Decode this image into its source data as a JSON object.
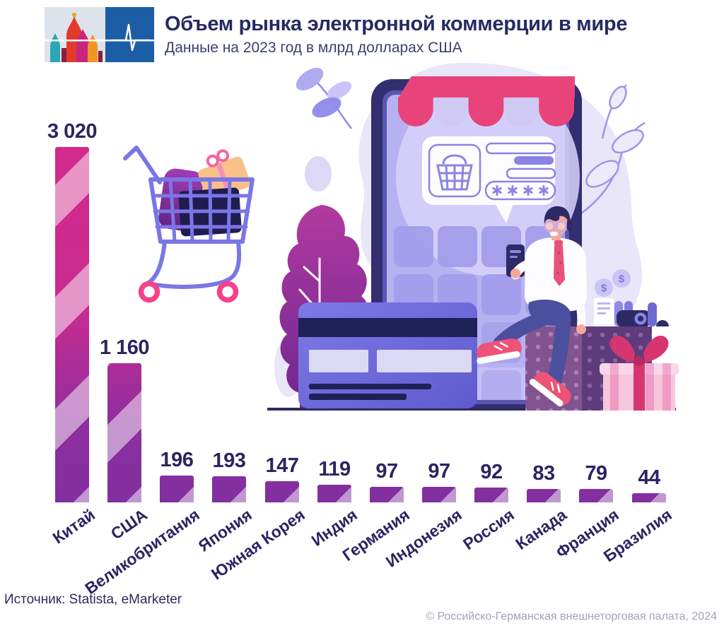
{
  "header": {
    "title": "Объем рынка электронной коммерции в мире",
    "subtitle": "Данные на 2023 год в млрд долларах США"
  },
  "chart_data": {
    "type": "bar",
    "title": "Объем рынка электронной коммерции в мире",
    "subtitle": "Данные на 2023 год в млрд долларах США",
    "unit": "млрд долларов США",
    "year": "2023",
    "categories": [
      "Китай",
      "США",
      "Великобритания",
      "Япония",
      "Южная Корея",
      "Индия",
      "Германия",
      "Индонезия",
      "Россия",
      "Канада",
      "Франция",
      "Бразилия"
    ],
    "values": [
      3020,
      1160,
      196,
      193,
      147,
      119,
      97,
      97,
      92,
      83,
      79,
      44
    ],
    "values_display": [
      "3 020",
      "1 160",
      "196",
      "193",
      "147",
      "119",
      "97",
      "97",
      "92",
      "83",
      "79",
      "44"
    ],
    "ylim": [
      0,
      3020
    ],
    "grid": false,
    "legend": false,
    "bar_color_top": "#d42a8c",
    "bar_color_bottom": "#812fa0",
    "stripe_overlay": "rgba(255,255,255,0.5)",
    "label_color": "#2b2462"
  },
  "footer": {
    "source": "Источник: Statista, eMarketer",
    "copyright": "© Российско-Германская внешнеторговая палата, 2024"
  },
  "colors": {
    "title_text": "#252a63",
    "logo_blue": "#1b5ea6",
    "awning_pink": "#e8447b",
    "lavender_accent": "#8a84e4",
    "navy": "#2e2b66",
    "cart_stroke": "#7b76e6",
    "wheel_pink": "#f2438c"
  },
  "illustration": {
    "coin_symbol": "$",
    "password_mask": "****",
    "elements": [
      "shopping-cart-with-purchases",
      "smartphone-online-store",
      "striped-store-awning",
      "checkout-card-with-basket",
      "credit-card",
      "purple-tree",
      "man-with-smartphone",
      "gift-boxes",
      "dollar-coins",
      "leaves"
    ]
  }
}
